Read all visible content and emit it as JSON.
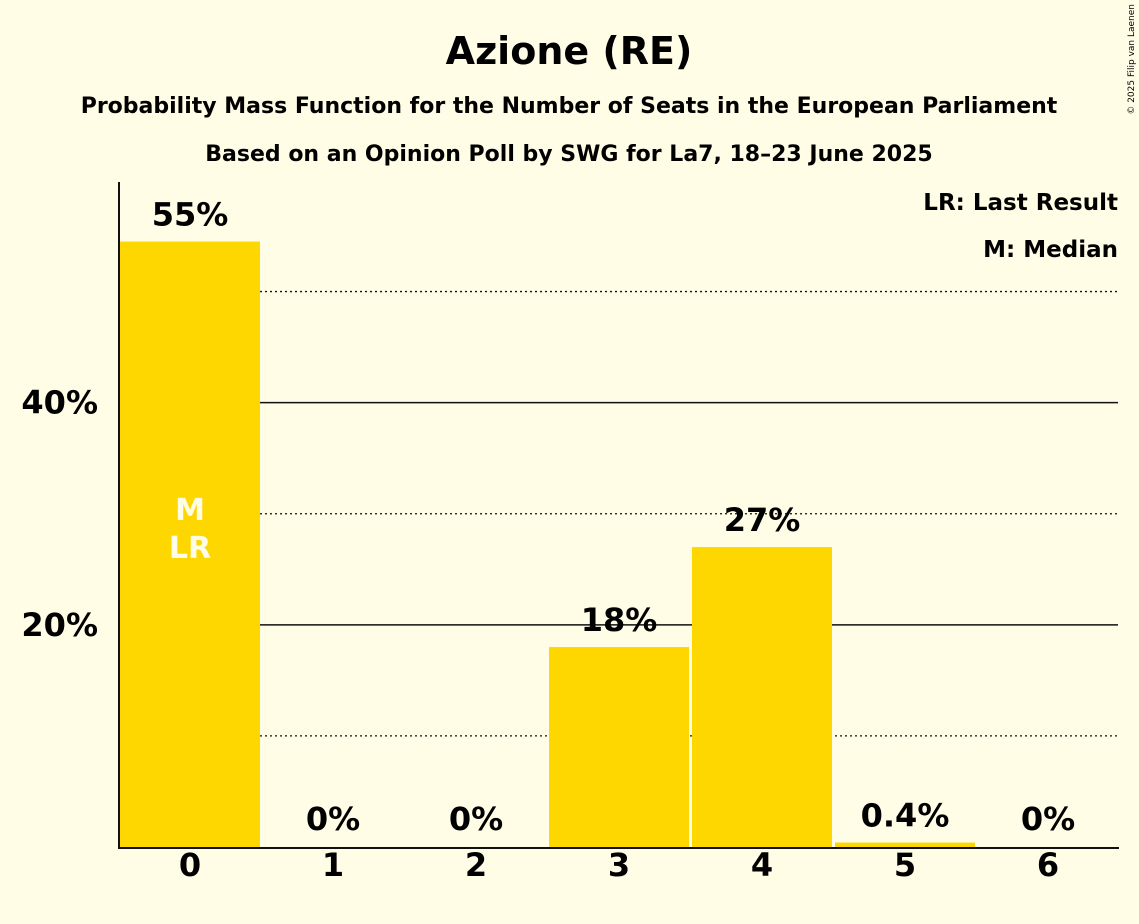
{
  "chart_data": {
    "type": "bar",
    "title": "Azione (RE)",
    "subtitle_line1": "Probability Mass Function for the Number of Seats in the European Parliament",
    "subtitle_line2": "Based on an Opinion Poll by SWG for La7, 18–23 June 2025",
    "categories": [
      "0",
      "1",
      "2",
      "3",
      "4",
      "5",
      "6"
    ],
    "values": [
      54.5,
      0,
      0,
      18,
      27,
      0.4,
      0
    ],
    "data_labels": [
      "55%",
      "0%",
      "0%",
      "18%",
      "27%",
      "0.4%",
      "0%"
    ],
    "ylim": [
      0,
      59.5
    ],
    "y_ticks": [
      {
        "value": 20,
        "label": "20%"
      },
      {
        "value": 40,
        "label": "40%"
      }
    ],
    "solid_gridlines": [
      20,
      40
    ],
    "dotted_gridlines": [
      10,
      30,
      50
    ],
    "bar_color": "#FFD700",
    "inbar_labels": [
      {
        "category": "0",
        "lines": [
          "M",
          "LR"
        ]
      }
    ],
    "legend": [
      "LR: Last Result",
      "M: Median"
    ],
    "legend_position": "top-right",
    "copyright": "© 2025 Filip van Laenen"
  }
}
